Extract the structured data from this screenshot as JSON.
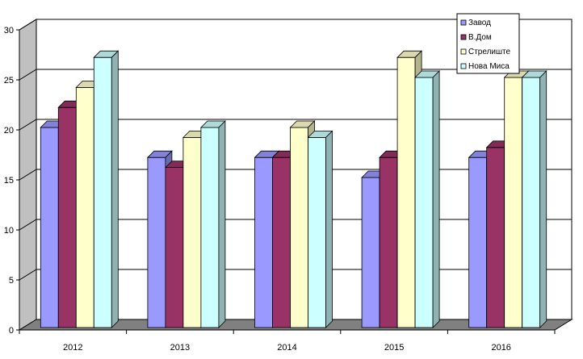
{
  "chart_data": {
    "type": "bar",
    "categories": [
      "2012",
      "2013",
      "2014",
      "2015",
      "2016"
    ],
    "series": [
      {
        "name": "Завод",
        "values": [
          20,
          17,
          17,
          15,
          17
        ]
      },
      {
        "name": "В.Дом",
        "values": [
          22,
          16,
          17,
          17,
          18
        ]
      },
      {
        "name": "Стрелиште",
        "values": [
          24,
          19,
          20,
          27,
          25
        ]
      },
      {
        "name": "Нова Миса",
        "values": [
          27,
          20,
          19,
          25,
          25
        ]
      }
    ],
    "ylim": [
      0,
      30
    ],
    "yticks": [
      "0",
      "5",
      "10",
      "15",
      "20",
      "25",
      "30"
    ],
    "grid": true,
    "legend_position": "top-right",
    "style": "3d-clustered-column"
  },
  "colors": {
    "series": [
      "#9999FF",
      "#993366",
      "#FFFFCC",
      "#CCFFFF"
    ],
    "wall": "#ffffff",
    "side_wall": "#c0c0c0",
    "floor": "#808080",
    "grid": "#000000"
  }
}
